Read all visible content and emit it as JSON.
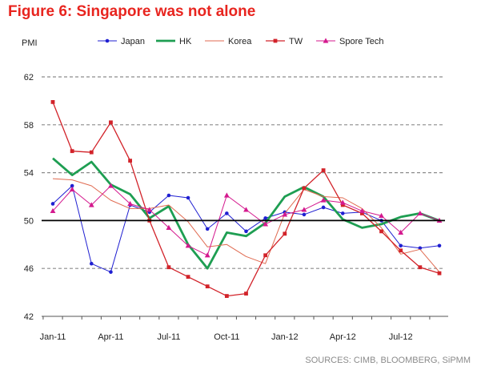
{
  "title": "Figure 6: Singapore was not alone",
  "source": "SOURCES: CIMB, BLOOMBERG, SiPMM",
  "chart_data": {
    "type": "line",
    "title": "Figure 6: Singapore was not alone",
    "ylabel": "PMI",
    "xlabel": "",
    "ylim": [
      42,
      62
    ],
    "yticks": [
      42,
      46,
      50,
      54,
      58,
      62
    ],
    "grid": "horizontal dashed",
    "legend": "top",
    "reference_line": 50,
    "x": [
      "Jan-11",
      "Feb-11",
      "Mar-11",
      "Apr-11",
      "May-11",
      "Jun-11",
      "Jul-11",
      "Aug-11",
      "Sep-11",
      "Oct-11",
      "Nov-11",
      "Dec-11",
      "Jan-12",
      "Feb-12",
      "Mar-12",
      "Apr-12",
      "May-12",
      "Jun-12",
      "Jul-12",
      "Aug-12",
      "Sep-12"
    ],
    "xtick_labels": [
      "Jan-11",
      "Apr-11",
      "Jul-11",
      "Oct-11",
      "Jan-12",
      "Apr-12",
      "Jul-12"
    ],
    "series": [
      {
        "name": "Japan",
        "color": "#1f1fd1",
        "style": "line-dot",
        "values": [
          51.4,
          52.9,
          46.4,
          45.7,
          51.3,
          50.7,
          52.1,
          51.9,
          49.3,
          50.6,
          49.1,
          50.2,
          50.7,
          50.5,
          51.1,
          50.6,
          50.7,
          50.0,
          47.9,
          47.7,
          47.9
        ]
      },
      {
        "name": "HK",
        "color": "#1e9e52",
        "style": "thick-line",
        "values": [
          55.2,
          53.8,
          54.9,
          53.0,
          52.2,
          50.2,
          51.2,
          48.0,
          46.0,
          49.0,
          48.7,
          49.8,
          52.0,
          52.8,
          52.0,
          50.1,
          49.4,
          49.7,
          50.3,
          50.6,
          50.0
        ]
      },
      {
        "name": "Korea",
        "color": "#e06a50",
        "style": "thin-line",
        "values": [
          53.5,
          53.4,
          52.9,
          51.7,
          51.0,
          51.0,
          51.3,
          49.9,
          47.8,
          48.0,
          47.0,
          46.4,
          50.6,
          52.6,
          52.0,
          51.9,
          51.0,
          49.4,
          47.2,
          47.6,
          45.7
        ]
      },
      {
        "name": "TW",
        "color": "#d2232a",
        "style": "line-square",
        "values": [
          59.9,
          55.8,
          55.7,
          58.2,
          55.0,
          50.0,
          46.1,
          45.3,
          44.5,
          43.7,
          43.9,
          47.1,
          48.9,
          52.7,
          54.2,
          51.3,
          50.6,
          49.1,
          47.5,
          46.1,
          45.6
        ]
      },
      {
        "name": "Spore Tech",
        "color": "#d4198e",
        "style": "line-triangle",
        "values": [
          50.8,
          52.6,
          51.3,
          52.9,
          51.4,
          50.9,
          49.4,
          47.9,
          47.1,
          52.1,
          50.9,
          49.7,
          50.5,
          50.9,
          51.7,
          51.5,
          50.8,
          50.4,
          49.0,
          50.6,
          50.0
        ]
      }
    ]
  }
}
